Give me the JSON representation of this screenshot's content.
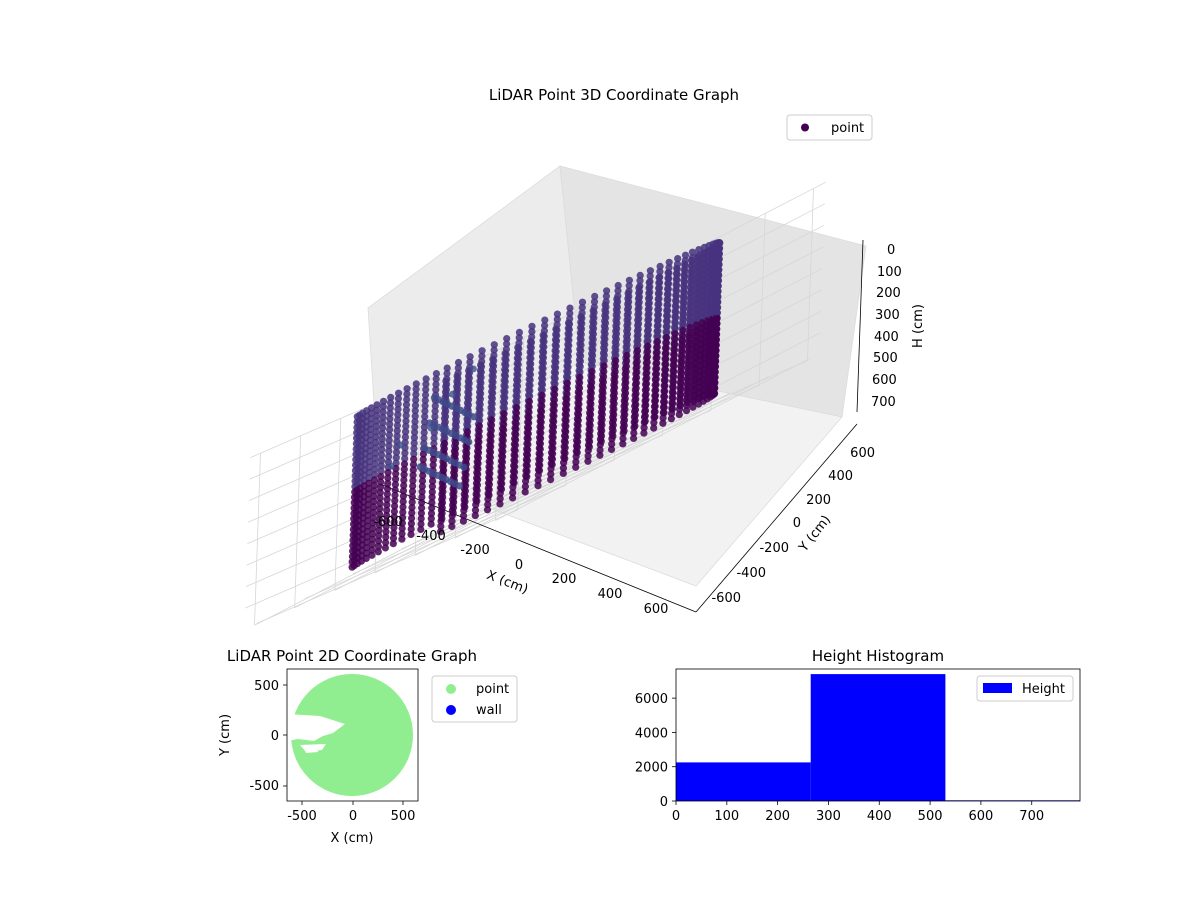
{
  "chart_data": [
    {
      "type": "scatter",
      "subtype": "3d",
      "title": "LiDAR Point 3D Coordinate Graph",
      "xlabel": "X (cm)",
      "ylabel": "Y (cm)",
      "zlabel": "H (cm)",
      "xlim": [
        -650,
        650
      ],
      "ylim": [
        -650,
        650
      ],
      "zlim": [
        0,
        800
      ],
      "z_inverted": true,
      "xticks": [
        "-600",
        "-400",
        "-200",
        "0",
        "200",
        "400",
        "600"
      ],
      "yticks": [
        "-600",
        "-400",
        "-200",
        "0",
        "200",
        "400",
        "600"
      ],
      "zticks": [
        "0",
        "100",
        "200",
        "300",
        "400",
        "500",
        "600",
        "700"
      ],
      "series": [
        {
          "name": "point",
          "color": "#440154",
          "shape": "approximately cylindrical wall of points",
          "radius_cm": 580,
          "h_range_cm": [
            50,
            750
          ],
          "gap_angle_deg": [
            160,
            225
          ],
          "inner_cluster": [
            {
              "x": -50,
              "y": -450,
              "h": 150
            },
            {
              "x": -150,
              "y": -350,
              "h": 250
            },
            {
              "x": -250,
              "y": -250,
              "h": 350
            },
            {
              "x": -350,
              "y": -150,
              "h": 420
            }
          ],
          "outliers": [
            {
              "x": -640,
              "y": 450,
              "h": 40
            },
            {
              "x": -600,
              "y": 300,
              "h": 120
            },
            {
              "x": -640,
              "y": 50,
              "h": 330
            },
            {
              "x": -560,
              "y": 150,
              "h": 240
            },
            {
              "x": -520,
              "y": -50,
              "h": 260
            }
          ]
        }
      ],
      "legend": {
        "placement": "upper-right",
        "entries": [
          "point"
        ]
      },
      "grid": true
    },
    {
      "type": "scatter",
      "title": "LiDAR Point 2D Coordinate Graph",
      "xlabel": "X (cm)",
      "ylabel": "Y (cm)",
      "xlim": [
        -650,
        650
      ],
      "ylim": [
        -650,
        650
      ],
      "xticks": [
        "-500",
        "0",
        "500"
      ],
      "yticks": [
        "-500",
        "0",
        "500"
      ],
      "series": [
        {
          "name": "point",
          "color": "#90ee90",
          "shape": "filled disc, radius about 600 cm, with a gap on the left side near Y=0"
        },
        {
          "name": "wall",
          "color": "#0000ff",
          "points": []
        }
      ],
      "legend": {
        "placement": "outside-right",
        "entries": [
          "point",
          "wall"
        ]
      },
      "grid": false
    },
    {
      "type": "bar",
      "subtype": "histogram",
      "title": "Height Histogram",
      "xlabel": "",
      "ylabel": "",
      "xlim": [
        0,
        795
      ],
      "ylim": [
        0,
        7700
      ],
      "xticks": [
        "0",
        "100",
        "200",
        "300",
        "400",
        "500",
        "600",
        "700"
      ],
      "yticks": [
        "0",
        "2000",
        "4000",
        "6000"
      ],
      "bins": [
        {
          "start": 0,
          "end": 265,
          "count": 2250
        },
        {
          "start": 265,
          "end": 530,
          "count": 7400
        },
        {
          "start": 530,
          "end": 795,
          "count": 40
        }
      ],
      "series": [
        {
          "name": "Height",
          "color": "#0000ff"
        }
      ],
      "legend": {
        "placement": "upper-right",
        "entries": [
          "Height"
        ]
      },
      "grid": false
    }
  ]
}
